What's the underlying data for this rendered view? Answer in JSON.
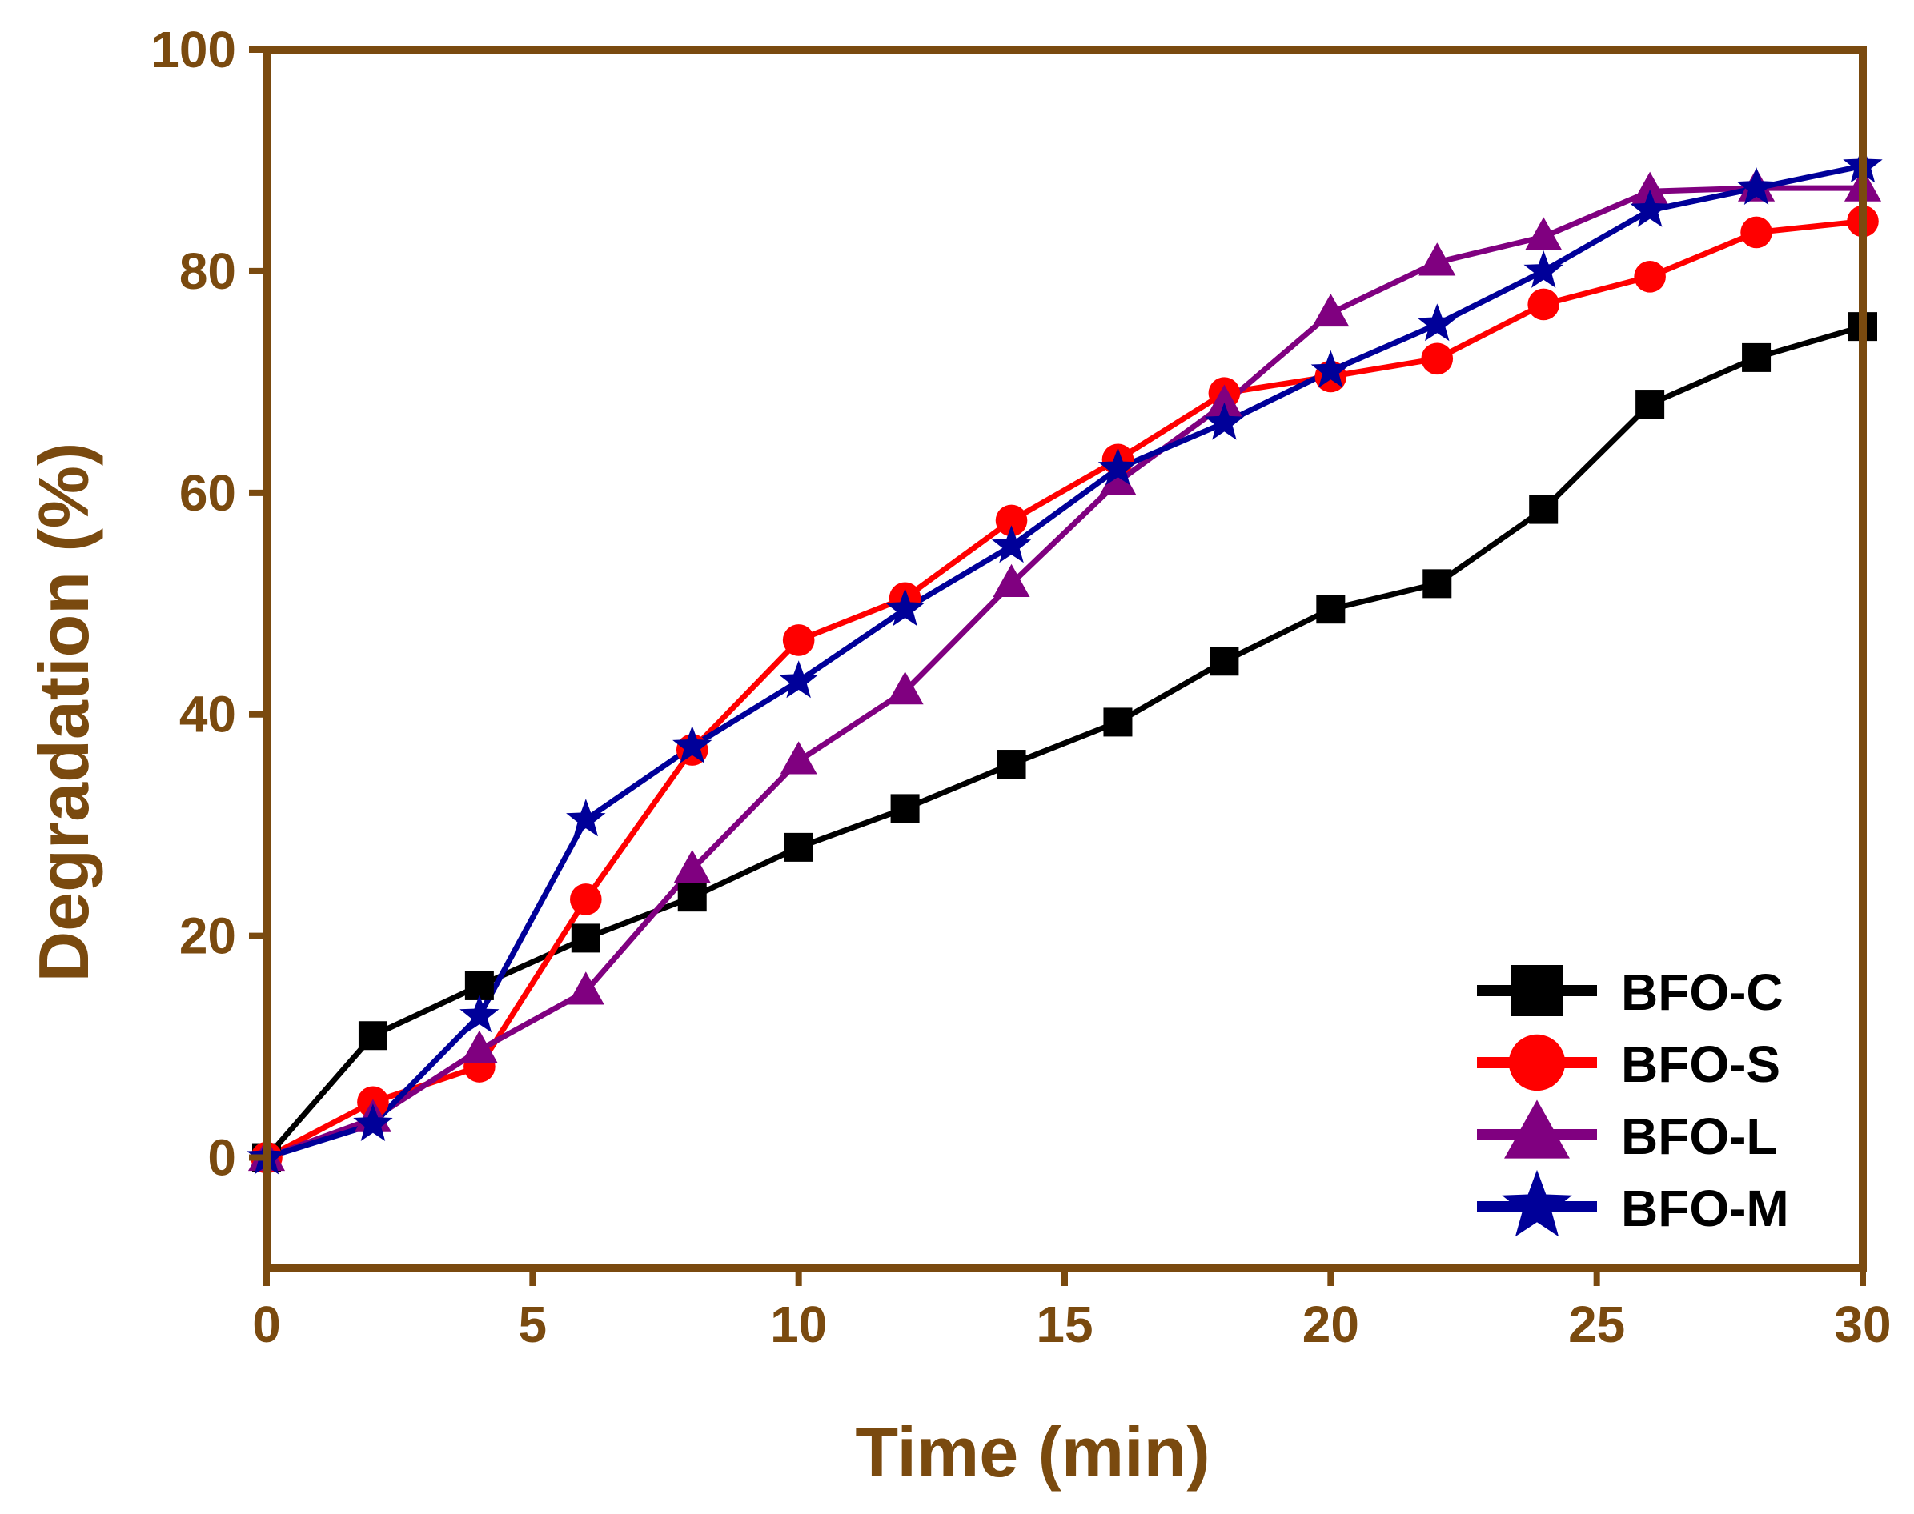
{
  "chart_data": {
    "type": "line",
    "title": "",
    "xlabel": "Time (min)",
    "ylabel": "Degradation (%)",
    "xlim": [
      0,
      30
    ],
    "ylim": [
      -10,
      100
    ],
    "xticks": [
      0,
      5,
      10,
      15,
      20,
      25,
      30
    ],
    "yticks": [
      0,
      20,
      40,
      60,
      80,
      100
    ],
    "xtick_labels": [
      "0",
      "5",
      "10",
      "15",
      "20",
      "25",
      "30"
    ],
    "ytick_labels": [
      "0",
      "20",
      "40",
      "60",
      "80",
      "100"
    ],
    "grid": false,
    "legend_position": "bottom-right",
    "axis_color": "#7a4a0f",
    "x": [
      0,
      2,
      4,
      6,
      8,
      10,
      12,
      14,
      16,
      18,
      20,
      22,
      24,
      26,
      28,
      30
    ],
    "series": [
      {
        "name": "BFO-C",
        "color": "#000000",
        "marker": "square",
        "values": [
          0,
          11,
          15.5,
          19.8,
          23.5,
          28,
          31.5,
          35.5,
          39.3,
          44.8,
          49.5,
          51.8,
          58.5,
          68,
          72.2,
          75
        ]
      },
      {
        "name": "BFO-S",
        "color": "#ff0000",
        "marker": "circle",
        "values": [
          0,
          5,
          8.2,
          23.3,
          36.8,
          46.7,
          50.5,
          57.5,
          63,
          69,
          70.5,
          72.1,
          77,
          79.5,
          83.5,
          84.5
        ]
      },
      {
        "name": "BFO-L",
        "color": "#800080",
        "marker": "triangle",
        "values": [
          0,
          3.5,
          9.7,
          15,
          26,
          35.8,
          42.1,
          51.8,
          61,
          68,
          76.2,
          80.8,
          83.1,
          87.2,
          87.5,
          87.5
        ]
      },
      {
        "name": "BFO-M",
        "color": "#000099",
        "marker": "star",
        "values": [
          0,
          3,
          12.8,
          30.5,
          37.1,
          43,
          49.5,
          55.2,
          62.2,
          66.3,
          71,
          75.2,
          80,
          85.5,
          87.5,
          89.5
        ]
      }
    ]
  }
}
